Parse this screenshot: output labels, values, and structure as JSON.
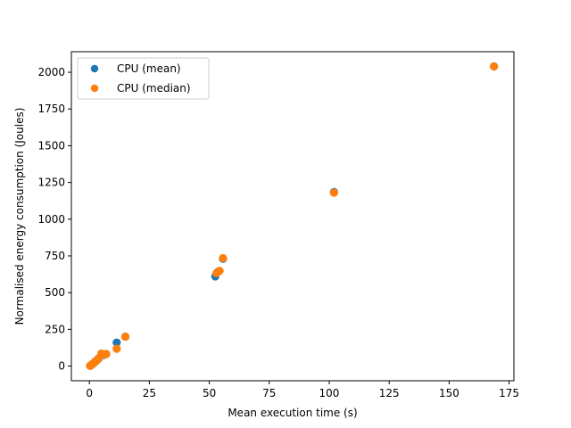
{
  "chart_data": {
    "type": "scatter",
    "title": "",
    "xlabel": "Mean execution time (s)",
    "ylabel": "Normalised energy consumption (Joules)",
    "xlim": [
      -7.5,
      177
    ],
    "ylim": [
      -100,
      2140
    ],
    "xticks": [
      0,
      25,
      50,
      75,
      100,
      125,
      150,
      175
    ],
    "yticks": [
      0,
      250,
      500,
      750,
      1000,
      1250,
      1500,
      1750,
      2000
    ],
    "grid": false,
    "legend_position": "top-left",
    "series": [
      {
        "name": "CPU (mean)",
        "color": "#1f77b4",
        "points": [
          [
            0.3,
            2
          ],
          [
            0.6,
            5
          ],
          [
            0.9,
            8
          ],
          [
            1.2,
            12
          ],
          [
            1.5,
            15
          ],
          [
            1.8,
            20
          ],
          [
            2.1,
            25
          ],
          [
            2.5,
            30
          ],
          [
            3.0,
            38
          ],
          [
            3.5,
            45
          ],
          [
            4.0,
            55
          ],
          [
            5.0,
            80
          ],
          [
            6.0,
            75
          ],
          [
            7.0,
            82
          ],
          [
            11.4,
            160
          ],
          [
            15.0,
            200
          ],
          [
            52.5,
            610
          ],
          [
            53.5,
            640
          ],
          [
            55.7,
            730
          ],
          [
            102.0,
            1185
          ],
          [
            168.7,
            2040
          ]
        ]
      },
      {
        "name": "CPU (median)",
        "color": "#ff7f0e",
        "points": [
          [
            0.3,
            2
          ],
          [
            0.6,
            5
          ],
          [
            0.9,
            8
          ],
          [
            1.2,
            12
          ],
          [
            1.5,
            15
          ],
          [
            1.8,
            20
          ],
          [
            2.1,
            25
          ],
          [
            2.5,
            30
          ],
          [
            3.0,
            38
          ],
          [
            3.5,
            45
          ],
          [
            4.0,
            55
          ],
          [
            5.0,
            85
          ],
          [
            6.0,
            78
          ],
          [
            7.0,
            82
          ],
          [
            11.4,
            118
          ],
          [
            15.0,
            200
          ],
          [
            53.0,
            632
          ],
          [
            54.3,
            648
          ],
          [
            55.7,
            735
          ],
          [
            102.0,
            1180
          ],
          [
            168.7,
            2040
          ]
        ]
      }
    ]
  }
}
